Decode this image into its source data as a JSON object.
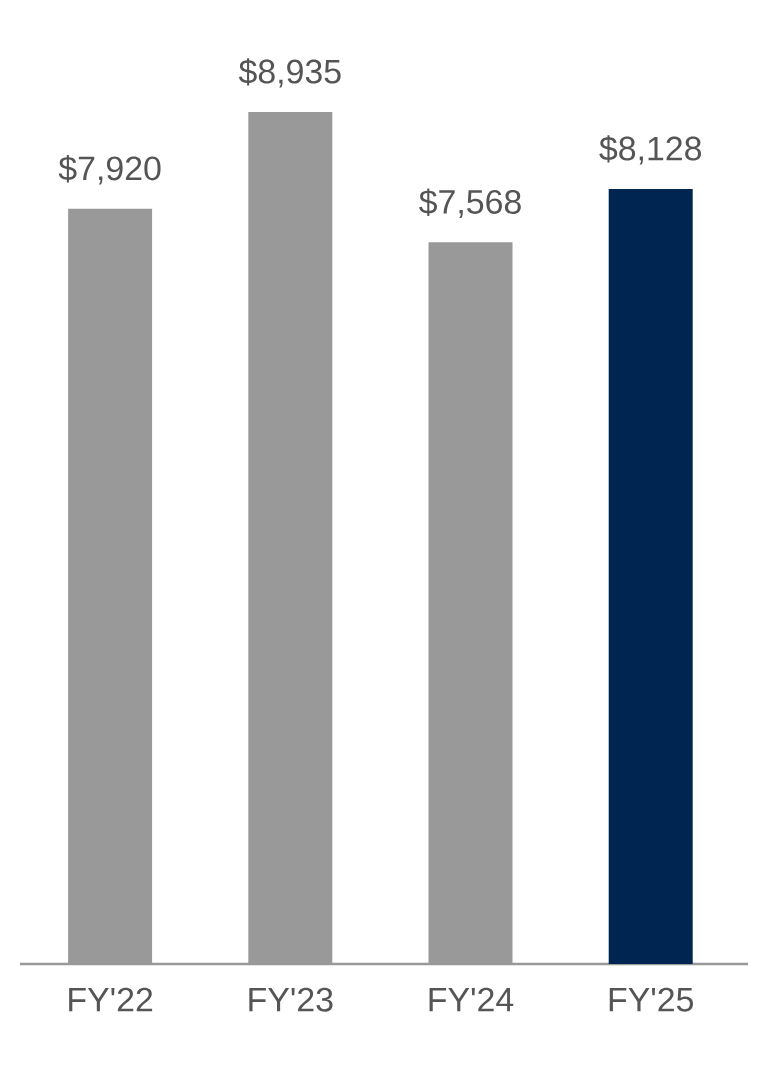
{
  "chart_data": {
    "type": "bar",
    "categories": [
      "FY'22",
      "FY'23",
      "FY'24",
      "FY'25"
    ],
    "values": [
      7920,
      8935,
      7568,
      8128
    ],
    "value_labels": [
      "$7,920",
      "$8,935",
      "$7,568",
      "$8,128"
    ],
    "colors": [
      "#999999",
      "#999999",
      "#999999",
      "#002550"
    ]
  }
}
